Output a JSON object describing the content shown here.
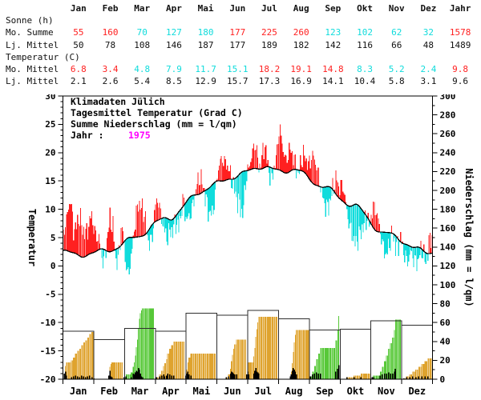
{
  "table": {
    "columns": [
      "Jan",
      "Feb",
      "Mar",
      "Apr",
      "Mai",
      "Jun",
      "Jul",
      "Aug",
      "Sep",
      "Okt",
      "Nov",
      "Dez",
      "Jahr"
    ],
    "sections": [
      {
        "label": "Sonne (h)",
        "rows": [
          {
            "label": "Mo. Summe",
            "colored": true,
            "values": [
              "55",
              "160",
              "70",
              "127",
              "180",
              "177",
              "225",
              "260",
              "123",
              "102",
              "62",
              "32",
              "1578"
            ]
          },
          {
            "label": "Lj. Mittel",
            "colored": false,
            "values": [
              "50",
              "78",
              "108",
              "146",
              "187",
              "177",
              "189",
              "182",
              "142",
              "116",
              "66",
              "48",
              "1489"
            ]
          }
        ]
      },
      {
        "label": "Temperatur (C)",
        "rows": [
          {
            "label": "Mo. Mittel",
            "colored": true,
            "values": [
              "6.8",
              "3.4",
              "4.8",
              "7.9",
              "11.7",
              "15.1",
              "18.2",
              "19.1",
              "14.8",
              "8.3",
              "5.2",
              "2.4",
              "9.8"
            ]
          },
          {
            "label": "Lj. Mittel",
            "colored": false,
            "values": [
              "2.1",
              "2.6",
              "5.4",
              "8.5",
              "12.9",
              "15.7",
              "17.3",
              "16.9",
              "14.1",
              "10.4",
              "5.8",
              "3.1",
              "9.6"
            ]
          }
        ]
      }
    ]
  },
  "colors": {
    "above_normal": "#ff2020",
    "below_normal": "#10dcdc",
    "year_accent": "#ff00ff",
    "precip_below_mean": "#dfa32e",
    "precip_above_mean": "#57c838",
    "precip_daily": "#000000",
    "mean_curve": "#000000",
    "frame": "#000000",
    "month_box": "#2e2e2e"
  },
  "chart_data": {
    "type": "line",
    "title": "Klimadaten Jülich",
    "legend": {
      "line1": "Klimadaten Jülich",
      "line2": "Tagesmittel Temperatur (Grad C)",
      "line3": "Summe Niederschlag (mm = l/qm)",
      "year_label": "Jahr :",
      "year": "1975"
    },
    "months": [
      "Jan",
      "Feb",
      "Mar",
      "Apr",
      "Mai",
      "Jun",
      "Jul",
      "Aug",
      "Sep",
      "Okt",
      "Nov",
      "Dez"
    ],
    "month_days": [
      31,
      28,
      31,
      30,
      31,
      30,
      31,
      31,
      30,
      31,
      30,
      31
    ],
    "temperature": {
      "ylabel": "Temperatur",
      "ylim": [
        -20,
        30
      ],
      "tick_major": 5,
      "tick_minor": 1,
      "climatology_monthly": [
        2.1,
        2.6,
        5.4,
        8.5,
        12.9,
        15.7,
        17.3,
        16.9,
        14.1,
        10.4,
        5.8,
        3.1
      ],
      "monthly_mean": [
        6.8,
        3.4,
        4.8,
        7.9,
        11.7,
        15.1,
        18.2,
        19.1,
        14.8,
        8.3,
        5.2,
        2.4
      ],
      "climatology_anchors": [
        [
          1,
          2.4
        ],
        [
          15,
          2.1
        ],
        [
          46,
          2.6
        ],
        [
          74,
          5.4
        ],
        [
          105,
          8.5
        ],
        [
          135,
          12.9
        ],
        [
          166,
          15.7
        ],
        [
          196,
          17.3
        ],
        [
          227,
          16.9
        ],
        [
          258,
          14.1
        ],
        [
          288,
          10.4
        ],
        [
          319,
          5.8
        ],
        [
          349,
          3.1
        ],
        [
          365,
          2.6
        ]
      ],
      "anomaly_keypoints": [
        [
          1,
          3
        ],
        [
          4,
          5.5
        ],
        [
          8,
          9.5
        ],
        [
          11,
          4
        ],
        [
          14,
          5
        ],
        [
          17,
          7
        ],
        [
          20,
          5
        ],
        [
          23,
          4
        ],
        [
          26,
          5
        ],
        [
          29,
          7
        ],
        [
          31,
          4
        ],
        [
          33,
          3
        ],
        [
          36,
          2
        ],
        [
          39,
          -1.5
        ],
        [
          41,
          -2.5
        ],
        [
          44,
          2
        ],
        [
          47,
          6
        ],
        [
          50,
          4
        ],
        [
          53,
          -2
        ],
        [
          55,
          -2.5
        ],
        [
          58,
          3
        ],
        [
          60,
          2
        ],
        [
          62,
          -3
        ],
        [
          64,
          -6.5
        ],
        [
          67,
          -5
        ],
        [
          69,
          -2
        ],
        [
          72,
          3
        ],
        [
          75,
          6
        ],
        [
          78,
          5
        ],
        [
          81,
          4
        ],
        [
          84,
          -1
        ],
        [
          87,
          -3
        ],
        [
          90,
          -1
        ],
        [
          91,
          2
        ],
        [
          94,
          4
        ],
        [
          97,
          1
        ],
        [
          100,
          -2
        ],
        [
          103,
          -3.5
        ],
        [
          106,
          -2
        ],
        [
          109,
          -2
        ],
        [
          112,
          -1
        ],
        [
          115,
          -3
        ],
        [
          118,
          0
        ],
        [
          120,
          1
        ],
        [
          121,
          -2
        ],
        [
          124,
          -3.5
        ],
        [
          127,
          -3
        ],
        [
          130,
          -1
        ],
        [
          133,
          2
        ],
        [
          136,
          3
        ],
        [
          139,
          1
        ],
        [
          142,
          -2
        ],
        [
          145,
          -4.5
        ],
        [
          148,
          -5
        ],
        [
          151,
          -3
        ],
        [
          152,
          0
        ],
        [
          155,
          3
        ],
        [
          158,
          4
        ],
        [
          161,
          3
        ],
        [
          164,
          2
        ],
        [
          167,
          0
        ],
        [
          170,
          -2
        ],
        [
          173,
          -4.5
        ],
        [
          176,
          -6
        ],
        [
          178,
          -8
        ],
        [
          180,
          -4
        ],
        [
          181,
          -2
        ],
        [
          182,
          -1
        ],
        [
          185,
          1
        ],
        [
          188,
          3
        ],
        [
          191,
          4.5
        ],
        [
          194,
          0
        ],
        [
          197,
          2
        ],
        [
          200,
          4
        ],
        [
          203,
          0
        ],
        [
          206,
          -2
        ],
        [
          209,
          0
        ],
        [
          212,
          3
        ],
        [
          213,
          6
        ],
        [
          215,
          7
        ],
        [
          218,
          4
        ],
        [
          221,
          2
        ],
        [
          224,
          4
        ],
        [
          227,
          3
        ],
        [
          230,
          1
        ],
        [
          233,
          -1
        ],
        [
          236,
          2
        ],
        [
          239,
          3
        ],
        [
          243,
          2
        ],
        [
          244,
          3
        ],
        [
          247,
          5
        ],
        [
          250,
          4
        ],
        [
          253,
          2
        ],
        [
          256,
          -1
        ],
        [
          259,
          -3
        ],
        [
          262,
          -4
        ],
        [
          265,
          -2
        ],
        [
          268,
          1
        ],
        [
          271,
          3
        ],
        [
          273,
          2
        ],
        [
          274,
          2
        ],
        [
          277,
          3
        ],
        [
          280,
          0
        ],
        [
          283,
          -3
        ],
        [
          286,
          -5
        ],
        [
          289,
          -7
        ],
        [
          292,
          -6
        ],
        [
          295,
          -4
        ],
        [
          298,
          -2
        ],
        [
          301,
          0
        ],
        [
          304,
          -1
        ],
        [
          305,
          2
        ],
        [
          308,
          4
        ],
        [
          311,
          3
        ],
        [
          314,
          0
        ],
        [
          317,
          -3
        ],
        [
          320,
          -4
        ],
        [
          323,
          -2
        ],
        [
          326,
          0
        ],
        [
          329,
          -2
        ],
        [
          332,
          -1
        ],
        [
          334,
          1
        ],
        [
          335,
          0
        ],
        [
          338,
          -2
        ],
        [
          341,
          -3
        ],
        [
          344,
          -1
        ],
        [
          347,
          -2
        ],
        [
          350,
          -3
        ],
        [
          353,
          -1
        ],
        [
          356,
          0
        ],
        [
          359,
          -2
        ],
        [
          362,
          2
        ],
        [
          365,
          3
        ]
      ]
    },
    "precipitation": {
      "ylabel": "Niederschlag (mm = l/qm)",
      "ylim": [
        0,
        300
      ],
      "tick_major": 20,
      "tick_minor": 10,
      "longterm_monthly_sum": [
        51,
        42,
        54,
        51,
        70,
        68,
        73,
        64,
        52,
        53,
        62,
        57
      ],
      "monthly_sum": [
        51,
        18,
        75,
        40,
        27,
        42,
        66,
        52,
        67,
        6,
        63,
        22
      ],
      "daily_events_by_month": [
        [
          [
            2,
            6
          ],
          [
            3,
            8
          ],
          [
            4,
            4
          ],
          [
            9,
            2
          ],
          [
            11,
            3
          ],
          [
            13,
            4
          ],
          [
            15,
            3
          ],
          [
            17,
            2
          ],
          [
            19,
            4
          ],
          [
            21,
            3
          ],
          [
            23,
            2
          ],
          [
            25,
            3
          ],
          [
            27,
            4
          ],
          [
            29,
            2
          ],
          [
            31,
            1
          ]
        ],
        [
          [
            15,
            4
          ],
          [
            16,
            9
          ],
          [
            17,
            3
          ],
          [
            18,
            2
          ]
        ],
        [
          [
            2,
            2
          ],
          [
            4,
            3
          ],
          [
            9,
            2
          ],
          [
            11,
            6
          ],
          [
            12,
            5
          ],
          [
            13,
            7
          ],
          [
            14,
            9
          ],
          [
            15,
            8
          ],
          [
            16,
            12
          ],
          [
            17,
            10
          ],
          [
            18,
            6
          ],
          [
            19,
            3
          ],
          [
            20,
            2
          ]
        ],
        [
          [
            3,
            2
          ],
          [
            6,
            3
          ],
          [
            8,
            4
          ],
          [
            10,
            5
          ],
          [
            11,
            3
          ],
          [
            13,
            4
          ],
          [
            14,
            6
          ],
          [
            16,
            5
          ],
          [
            18,
            4
          ],
          [
            20,
            4
          ]
        ],
        [
          [
            2,
            4
          ],
          [
            3,
            6
          ],
          [
            4,
            8
          ],
          [
            5,
            5
          ],
          [
            7,
            4
          ]
        ],
        [
          [
            11,
            2
          ],
          [
            13,
            3
          ],
          [
            15,
            6
          ],
          [
            16,
            8
          ],
          [
            17,
            7
          ],
          [
            18,
            6
          ],
          [
            19,
            5
          ],
          [
            21,
            5
          ]
        ],
        [
          [
            1,
            5
          ],
          [
            2,
            8
          ],
          [
            3,
            5
          ],
          [
            8,
            6
          ],
          [
            9,
            9
          ],
          [
            10,
            12
          ],
          [
            11,
            8
          ],
          [
            12,
            7
          ],
          [
            13,
            6
          ]
        ],
        [
          [
            13,
            3
          ],
          [
            14,
            5
          ],
          [
            15,
            9
          ],
          [
            16,
            12
          ],
          [
            17,
            10
          ],
          [
            18,
            8
          ],
          [
            19,
            5
          ]
        ],
        [
          [
            2,
            3
          ],
          [
            4,
            5
          ],
          [
            6,
            6
          ],
          [
            8,
            7
          ],
          [
            10,
            6
          ],
          [
            12,
            6
          ],
          [
            27,
            8
          ],
          [
            29,
            11
          ],
          [
            30,
            15
          ]
        ],
        [
          [
            8,
            2
          ],
          [
            15,
            2
          ],
          [
            22,
            2
          ]
        ],
        [
          [
            2,
            2
          ],
          [
            3,
            2
          ],
          [
            10,
            4
          ],
          [
            12,
            5
          ],
          [
            14,
            6
          ],
          [
            16,
            6
          ],
          [
            18,
            7
          ],
          [
            20,
            6
          ],
          [
            22,
            6
          ],
          [
            24,
            8
          ],
          [
            25,
            11
          ]
        ],
        [
          [
            3,
            1
          ],
          [
            6,
            2
          ],
          [
            9,
            2
          ],
          [
            12,
            3
          ],
          [
            15,
            2
          ],
          [
            18,
            3
          ],
          [
            21,
            3
          ],
          [
            24,
            3
          ],
          [
            27,
            3
          ]
        ]
      ]
    }
  }
}
